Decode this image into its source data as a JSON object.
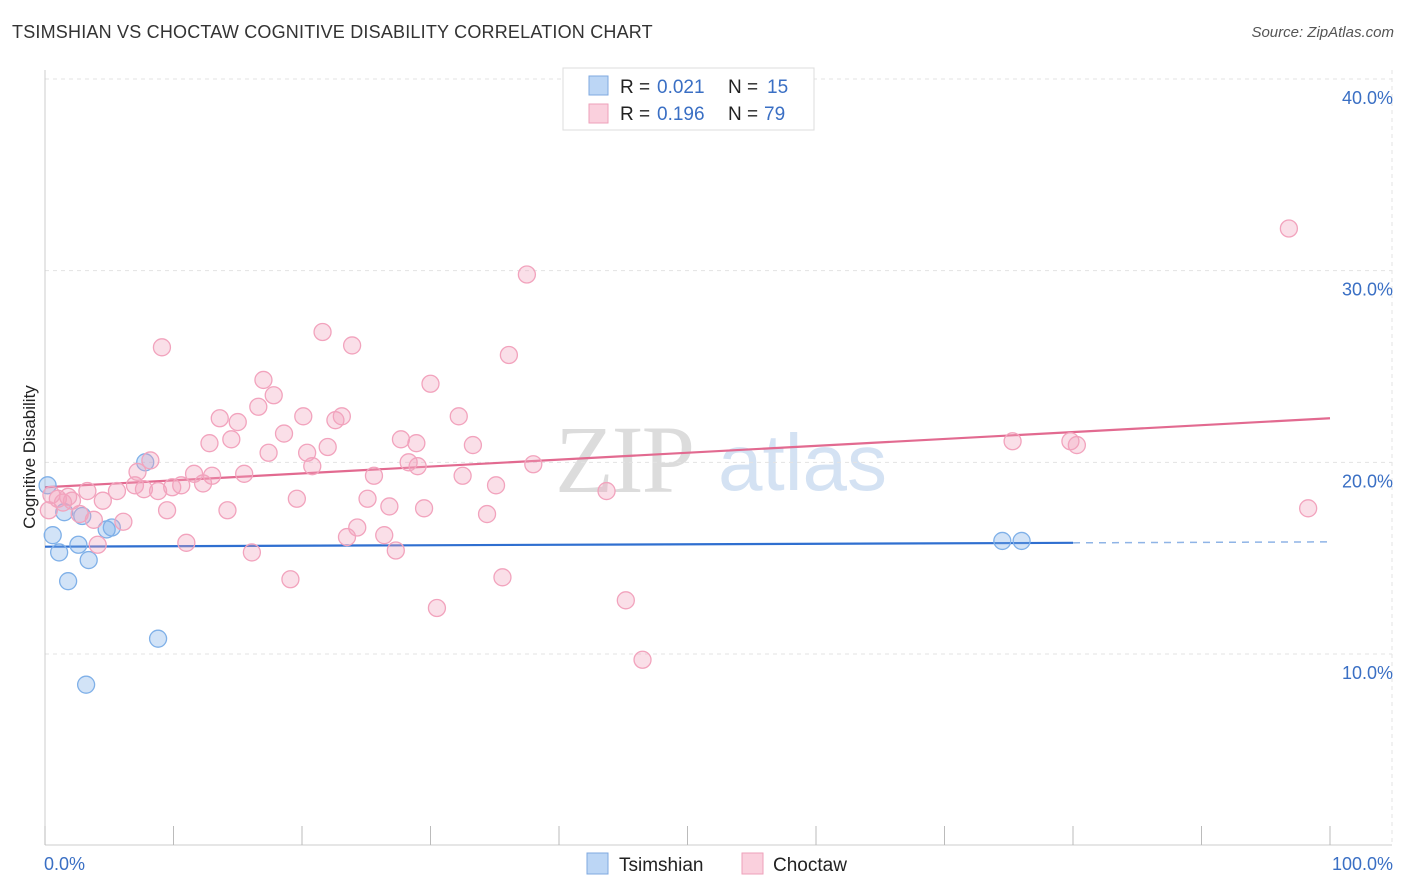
{
  "header": {
    "title": "TSIMSHIAN VS CHOCTAW COGNITIVE DISABILITY CORRELATION CHART",
    "source": "Source: ZipAtlas.com"
  },
  "watermark": {
    "zip": "ZIP",
    "atlas": "atlas"
  },
  "legend": {
    "rows": [
      {
        "r_label": "R =",
        "r_value": "0.021",
        "n_label": "N =",
        "n_value": "15",
        "color": "#a8c8f0"
      },
      {
        "r_label": "R =",
        "r_value": "0.196",
        "n_label": "N =",
        "n_value": "79",
        "color": "#f6b8cb"
      }
    ]
  },
  "chart_data": {
    "type": "scatter",
    "ylabel": "Cognitive Disability",
    "xlim": [
      0,
      100
    ],
    "ylim": [
      0,
      41
    ],
    "x_tick_labels": [
      "0.0%",
      "100.0%"
    ],
    "y_ticks": [
      {
        "value": 10,
        "label": "10.0%"
      },
      {
        "value": 20,
        "label": "20.0%"
      },
      {
        "value": 30,
        "label": "30.0%"
      },
      {
        "value": 40,
        "label": "40.0%"
      }
    ],
    "grid": true,
    "legend_position": "top-center",
    "series": [
      {
        "name": "Tsimshian",
        "color": "#7fb0e8",
        "line_color": "#2f6fd0",
        "trend": {
          "x0": 0,
          "y0": 15.6,
          "x1": 80,
          "y1": 15.8,
          "dashed_to": 100,
          "dashed_y": 15.85
        },
        "points": [
          [
            0.2,
            18.8
          ],
          [
            0.6,
            16.2
          ],
          [
            1.1,
            15.3
          ],
          [
            1.5,
            17.4
          ],
          [
            1.8,
            13.8
          ],
          [
            2.6,
            15.7
          ],
          [
            2.9,
            17.2
          ],
          [
            3.4,
            14.9
          ],
          [
            3.2,
            8.4
          ],
          [
            4.8,
            16.5
          ],
          [
            5.2,
            16.6
          ],
          [
            7.8,
            20.0
          ],
          [
            8.8,
            10.8
          ],
          [
            74.5,
            15.9
          ],
          [
            76.0,
            15.9
          ]
        ]
      },
      {
        "name": "Choctaw",
        "color": "#f2a3bd",
        "line_color": "#e26a90",
        "trend": {
          "x0": 0,
          "y0": 18.7,
          "x1": 100,
          "y1": 22.3
        },
        "points": [
          [
            0.3,
            17.5
          ],
          [
            0.5,
            18.3
          ],
          [
            1.0,
            18.1
          ],
          [
            1.4,
            17.9
          ],
          [
            1.8,
            18.2
          ],
          [
            2.1,
            18.0
          ],
          [
            2.7,
            17.3
          ],
          [
            3.3,
            18.5
          ],
          [
            3.8,
            17.0
          ],
          [
            4.1,
            15.7
          ],
          [
            4.5,
            18.0
          ],
          [
            5.6,
            18.5
          ],
          [
            6.1,
            16.9
          ],
          [
            7.0,
            18.8
          ],
          [
            7.2,
            19.5
          ],
          [
            7.7,
            18.6
          ],
          [
            8.2,
            20.1
          ],
          [
            8.8,
            18.5
          ],
          [
            9.1,
            26.0
          ],
          [
            9.5,
            17.5
          ],
          [
            9.9,
            18.7
          ],
          [
            10.6,
            18.8
          ],
          [
            11.0,
            15.8
          ],
          [
            11.6,
            19.4
          ],
          [
            12.3,
            18.9
          ],
          [
            12.8,
            21.0
          ],
          [
            13.0,
            19.3
          ],
          [
            13.6,
            22.3
          ],
          [
            14.2,
            17.5
          ],
          [
            14.5,
            21.2
          ],
          [
            15.0,
            22.1
          ],
          [
            15.5,
            19.4
          ],
          [
            16.1,
            15.3
          ],
          [
            16.6,
            22.9
          ],
          [
            17.0,
            24.3
          ],
          [
            17.4,
            20.5
          ],
          [
            17.8,
            23.5
          ],
          [
            18.6,
            21.5
          ],
          [
            19.1,
            13.9
          ],
          [
            19.6,
            18.1
          ],
          [
            20.1,
            22.4
          ],
          [
            20.4,
            20.5
          ],
          [
            20.8,
            19.8
          ],
          [
            21.6,
            26.8
          ],
          [
            22.0,
            20.8
          ],
          [
            22.6,
            22.2
          ],
          [
            23.1,
            22.4
          ],
          [
            23.5,
            16.1
          ],
          [
            23.9,
            26.1
          ],
          [
            24.3,
            16.6
          ],
          [
            25.1,
            18.1
          ],
          [
            25.6,
            19.3
          ],
          [
            26.4,
            16.2
          ],
          [
            26.8,
            17.7
          ],
          [
            27.3,
            15.4
          ],
          [
            27.7,
            21.2
          ],
          [
            28.3,
            20.0
          ],
          [
            28.9,
            21.0
          ],
          [
            29.0,
            19.8
          ],
          [
            29.5,
            17.6
          ],
          [
            30.0,
            24.1
          ],
          [
            30.5,
            12.4
          ],
          [
            32.2,
            22.4
          ],
          [
            32.5,
            19.3
          ],
          [
            33.3,
            20.9
          ],
          [
            34.4,
            17.3
          ],
          [
            35.1,
            18.8
          ],
          [
            35.6,
            14.0
          ],
          [
            36.1,
            25.6
          ],
          [
            37.5,
            29.8
          ],
          [
            38.0,
            19.9
          ],
          [
            43.7,
            18.5
          ],
          [
            45.2,
            12.8
          ],
          [
            46.5,
            9.7
          ],
          [
            75.3,
            21.1
          ],
          [
            79.8,
            21.1
          ],
          [
            80.3,
            20.9
          ],
          [
            96.8,
            32.2
          ],
          [
            98.3,
            17.6
          ]
        ]
      }
    ]
  }
}
